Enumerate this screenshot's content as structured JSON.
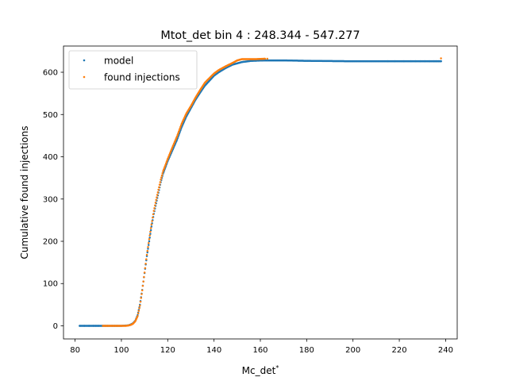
{
  "chart_data": {
    "type": "scatter",
    "title": "Mtot_det bin 4 : 248.344 - 547.277",
    "xlabel": "Mc_det",
    "xlabel_superscript": "*",
    "ylabel": "Cumulative found injections",
    "xlim": [
      75,
      245
    ],
    "ylim": [
      -31,
      662
    ],
    "xticks": [
      80,
      100,
      120,
      140,
      160,
      180,
      200,
      220,
      240
    ],
    "yticks": [
      0,
      100,
      200,
      300,
      400,
      500,
      600
    ],
    "grid": false,
    "legend_position": "upper left",
    "series": [
      {
        "name": "model",
        "color": "#1f77b4",
        "curve": [
          [
            82,
            0
          ],
          [
            88,
            0
          ],
          [
            95,
            0
          ],
          [
            100,
            0
          ],
          [
            103,
            1
          ],
          [
            104,
            3
          ],
          [
            105,
            6
          ],
          [
            106,
            12
          ],
          [
            107,
            25
          ],
          [
            108,
            50
          ],
          [
            109,
            85
          ],
          [
            110,
            125
          ],
          [
            111,
            165
          ],
          [
            112,
            200
          ],
          [
            113,
            235
          ],
          [
            114,
            265
          ],
          [
            115,
            290
          ],
          [
            116,
            315
          ],
          [
            117,
            340
          ],
          [
            118,
            360
          ],
          [
            119,
            375
          ],
          [
            120,
            390
          ],
          [
            122,
            415
          ],
          [
            124,
            440
          ],
          [
            126,
            470
          ],
          [
            128,
            495
          ],
          [
            130,
            515
          ],
          [
            132,
            535
          ],
          [
            134,
            552
          ],
          [
            136,
            568
          ],
          [
            138,
            580
          ],
          [
            140,
            592
          ],
          [
            142,
            600
          ],
          [
            145,
            610
          ],
          [
            148,
            618
          ],
          [
            152,
            624
          ],
          [
            156,
            627
          ],
          [
            162,
            628
          ],
          [
            170,
            628
          ],
          [
            180,
            627
          ],
          [
            200,
            626
          ],
          [
            220,
            626
          ],
          [
            238,
            626
          ]
        ],
        "sparse_points": [
          [
            82,
            0
          ],
          [
            84,
            0
          ],
          [
            86,
            0
          ],
          [
            88,
            0
          ],
          [
            89,
            0
          ],
          [
            90,
            0
          ],
          [
            92,
            0
          ],
          [
            93,
            0
          ],
          [
            94,
            0
          ],
          [
            96,
            0
          ],
          [
            97,
            0
          ],
          [
            98,
            0
          ],
          [
            215,
            626
          ],
          [
            218,
            626
          ],
          [
            222,
            626
          ],
          [
            225,
            626
          ],
          [
            227,
            626
          ],
          [
            229,
            626
          ],
          [
            231,
            626
          ],
          [
            233,
            626
          ],
          [
            235,
            626
          ],
          [
            236,
            626
          ],
          [
            237,
            626
          ],
          [
            238,
            626
          ]
        ]
      },
      {
        "name": "found injections",
        "color": "#ff7f0e",
        "curve": [
          [
            92,
            0
          ],
          [
            98,
            0
          ],
          [
            102,
            0
          ],
          [
            104,
            2
          ],
          [
            105,
            5
          ],
          [
            106,
            11
          ],
          [
            107,
            23
          ],
          [
            108,
            48
          ],
          [
            109,
            84
          ],
          [
            110,
            126
          ],
          [
            111,
            168
          ],
          [
            112,
            205
          ],
          [
            113,
            240
          ],
          [
            114,
            272
          ],
          [
            115,
            298
          ],
          [
            116,
            322
          ],
          [
            117,
            346
          ],
          [
            118,
            366
          ],
          [
            119,
            380
          ],
          [
            120,
            395
          ],
          [
            122,
            422
          ],
          [
            124,
            448
          ],
          [
            126,
            478
          ],
          [
            128,
            502
          ],
          [
            130,
            520
          ],
          [
            132,
            540
          ],
          [
            134,
            558
          ],
          [
            136,
            575
          ],
          [
            138,
            586
          ],
          [
            140,
            597
          ],
          [
            142,
            605
          ],
          [
            145,
            614
          ],
          [
            148,
            622
          ],
          [
            150,
            628
          ],
          [
            152,
            631
          ],
          [
            155,
            631
          ],
          [
            158,
            631
          ],
          [
            162,
            632
          ]
        ],
        "sparse_points": [
          [
            163,
            632
          ],
          [
            238,
            633
          ]
        ]
      }
    ]
  }
}
